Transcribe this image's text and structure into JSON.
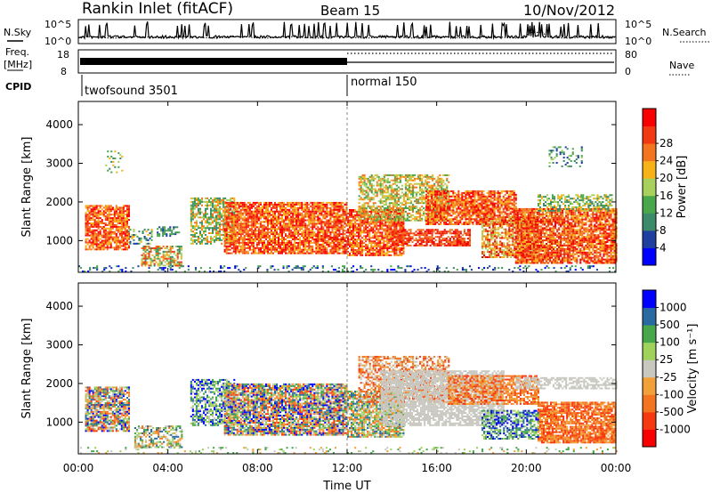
{
  "header": {
    "station": "Rankin Inlet (fitACF)",
    "beam": "Beam 15",
    "date": "10/Nov/2012"
  },
  "left_labels": {
    "nsky": "N.Sky",
    "freq_line1": "Freq.",
    "freq_line2": "[MHz]",
    "cpid": "CPID"
  },
  "right_labels": {
    "nsearch": "N.Search",
    "nave": "Nave"
  },
  "cpid_segments": [
    "twofsound 3501",
    "normal 150"
  ],
  "nsky_ticks": {
    "top": "10^5",
    "bottom": "10^0"
  },
  "freq_ticks": [
    "18",
    "8"
  ],
  "nave_ticks": [
    "80",
    "0"
  ],
  "colors": {
    "power": [
      "#0000ff",
      "#1e3fa0",
      "#3d8a6a",
      "#48a64b",
      "#a8d05c",
      "#f7b21a",
      "#f37520",
      "#f23a12",
      "#f70000"
    ],
    "velocity": [
      "#f70000",
      "#f53a12",
      "#f37520",
      "#f2a03a",
      "#c8c8c0",
      "#9ed25a",
      "#48a64b",
      "#2a6aa0",
      "#0000ff"
    ],
    "ground_scatter": "#c8c8c0"
  },
  "chart_data": [
    {
      "type": "line",
      "name": "sounding-parameters",
      "x_unit": "hours UT",
      "xlim": [
        0,
        24
      ],
      "labels": [
        "N.Sky",
        "N.Search",
        "Freq. [MHz]",
        "Nave",
        "CPID"
      ],
      "cpid_segments": [
        {
          "label": "twofsound 3501",
          "start": 0.0,
          "end": 12.0
        },
        {
          "label": "normal 150",
          "start": 12.0,
          "end": 24.0
        }
      ]
    },
    {
      "type": "heatmap",
      "name": "power",
      "xlabel": "",
      "ylabel": "Slant Range [km]",
      "ylim": [
        180,
        4600
      ],
      "yticks": [
        1000,
        2000,
        3000,
        4000
      ],
      "colorbar_label": "Power [dB]",
      "colorbar_ticks": [
        4,
        8,
        12,
        16,
        20,
        24,
        28
      ],
      "regions": [
        {
          "t0": 0.3,
          "t1": 2.3,
          "r0": 750,
          "r1": 1900,
          "density": 0.8,
          "lo": 5,
          "hi": 8
        },
        {
          "t0": 1.2,
          "t1": 2.0,
          "r0": 2700,
          "r1": 3300,
          "density": 0.2,
          "lo": 2,
          "hi": 5
        },
        {
          "t0": 2.2,
          "t1": 3.3,
          "r0": 900,
          "r1": 1300,
          "density": 0.35,
          "lo": 1,
          "hi": 5
        },
        {
          "t0": 2.8,
          "t1": 4.6,
          "r0": 330,
          "r1": 850,
          "density": 0.6,
          "lo": 2,
          "hi": 7
        },
        {
          "t0": 3.5,
          "t1": 4.5,
          "r0": 1100,
          "r1": 1350,
          "density": 0.55,
          "lo": 1,
          "hi": 3
        },
        {
          "t0": 5.0,
          "t1": 7.0,
          "r0": 900,
          "r1": 2100,
          "density": 0.65,
          "lo": 2,
          "hi": 6
        },
        {
          "t0": 6.5,
          "t1": 12.0,
          "r0": 650,
          "r1": 2000,
          "density": 0.85,
          "lo": 5,
          "hi": 8
        },
        {
          "t0": 12.0,
          "t1": 14.5,
          "r0": 600,
          "r1": 1800,
          "density": 0.8,
          "lo": 5,
          "hi": 8
        },
        {
          "t0": 12.5,
          "t1": 16.5,
          "r0": 1500,
          "r1": 2700,
          "density": 0.6,
          "lo": 3,
          "hi": 6
        },
        {
          "t0": 14.0,
          "t1": 17.5,
          "r0": 850,
          "r1": 1300,
          "density": 0.75,
          "lo": 6,
          "hi": 8
        },
        {
          "t0": 15.5,
          "t1": 19.5,
          "r0": 1400,
          "r1": 2300,
          "density": 0.8,
          "lo": 5,
          "hi": 8
        },
        {
          "t0": 18.0,
          "t1": 20.5,
          "r0": 550,
          "r1": 1600,
          "density": 0.7,
          "lo": 4,
          "hi": 8
        },
        {
          "t0": 19.5,
          "t1": 24.0,
          "r0": 400,
          "r1": 1800,
          "density": 0.85,
          "lo": 5,
          "hi": 8
        },
        {
          "t0": 20.5,
          "t1": 23.8,
          "r0": 1750,
          "r1": 2200,
          "density": 0.5,
          "lo": 2,
          "hi": 5
        },
        {
          "t0": 21.0,
          "t1": 22.5,
          "r0": 2900,
          "r1": 3400,
          "density": 0.3,
          "lo": 1,
          "hi": 4
        },
        {
          "t0": 0.0,
          "t1": 24.0,
          "r0": 180,
          "r1": 350,
          "density": 0.2,
          "lo": 0,
          "hi": 3
        }
      ]
    },
    {
      "type": "heatmap",
      "name": "velocity",
      "xlabel": "Time UT",
      "ylabel": "Slant Range [km]",
      "ylim": [
        180,
        4600
      ],
      "yticks": [
        1000,
        2000,
        3000,
        4000
      ],
      "xticks": [
        "00:00",
        "04:00",
        "08:00",
        "12:00",
        "16:00",
        "20:00",
        "00:00"
      ],
      "colorbar_label": "Velocity [m s⁻¹]",
      "colorbar_ticks": [
        -1000,
        -500,
        -100,
        -25,
        25,
        100,
        500,
        1000
      ],
      "regions": [
        {
          "t0": 0.3,
          "t1": 2.3,
          "r0": 750,
          "r1": 1900,
          "density": 0.8,
          "lo": 1,
          "hi": 8
        },
        {
          "t0": 2.5,
          "t1": 4.6,
          "r0": 330,
          "r1": 900,
          "density": 0.6,
          "lo": 2,
          "hi": 7
        },
        {
          "t0": 5.0,
          "t1": 7.0,
          "r0": 900,
          "r1": 2100,
          "density": 0.65,
          "lo": 4,
          "hi": 8
        },
        {
          "t0": 6.5,
          "t1": 12.0,
          "r0": 650,
          "r1": 2000,
          "density": 0.85,
          "lo": 1,
          "hi": 8
        },
        {
          "t0": 12.0,
          "t1": 14.5,
          "r0": 600,
          "r1": 1800,
          "density": 0.8,
          "lo": 2,
          "hi": 7
        },
        {
          "t0": 12.5,
          "t1": 16.5,
          "r0": 1500,
          "r1": 2700,
          "density": 0.6,
          "lo": 1,
          "hi": 4
        },
        {
          "t0": 13.5,
          "t1": 19.0,
          "r0": 900,
          "r1": 2300,
          "density": 0.75,
          "lo": 4,
          "hi": 4
        },
        {
          "t0": 16.5,
          "t1": 20.5,
          "r0": 1450,
          "r1": 2200,
          "density": 0.7,
          "lo": 1,
          "hi": 3
        },
        {
          "t0": 19.5,
          "t1": 24.0,
          "r0": 1850,
          "r1": 2150,
          "density": 0.6,
          "lo": 4,
          "hi": 4
        },
        {
          "t0": 20.5,
          "t1": 24.0,
          "r0": 450,
          "r1": 1500,
          "density": 0.85,
          "lo": 1,
          "hi": 3
        },
        {
          "t0": 18.0,
          "t1": 20.5,
          "r0": 550,
          "r1": 1300,
          "density": 0.6,
          "lo": 5,
          "hi": 8
        },
        {
          "t0": 0.0,
          "t1": 24.0,
          "r0": 180,
          "r1": 350,
          "density": 0.15,
          "lo": 3,
          "hi": 6
        }
      ]
    }
  ]
}
